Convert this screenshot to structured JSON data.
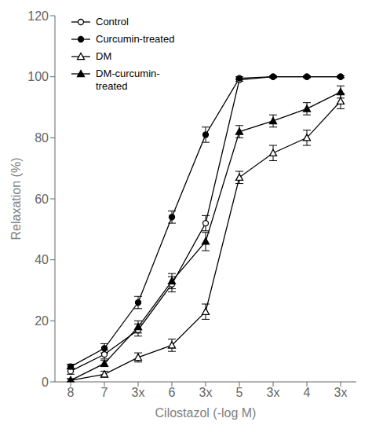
{
  "chart_data": {
    "type": "line",
    "xlabel": "Cilostazol (-log M)",
    "ylabel": "Relaxation (%)",
    "categories": [
      "8",
      "7",
      "3x",
      "6",
      "3x",
      "5",
      "3x",
      "4",
      "3x"
    ],
    "ylim": [
      0,
      120
    ],
    "yticks": [
      0,
      20,
      40,
      60,
      80,
      100,
      120
    ],
    "grid": false,
    "legend": "upper left",
    "series": [
      {
        "name": "Control",
        "color": "black",
        "marker": "circle_open",
        "values": [
          3.5,
          9.0,
          17.0,
          32.0,
          52.0,
          99.0,
          100.0,
          100.0,
          100.0
        ],
        "yerr": [
          1.0,
          1.5,
          2.0,
          2.5,
          2.5,
          0.5,
          0.3,
          0.3,
          0.3
        ]
      },
      {
        "name": "Curcumin-treated",
        "color": "black",
        "marker": "circle_filled",
        "values": [
          5.0,
          11.0,
          26.0,
          54.0,
          81.0,
          99.5,
          100.0,
          100.0,
          100.0
        ],
        "yerr": [
          0.8,
          1.5,
          2.0,
          2.0,
          2.5,
          0.5,
          0.3,
          0.3,
          0.3
        ]
      },
      {
        "name": "DM",
        "color": "black",
        "marker": "triangle_open",
        "values": [
          0.5,
          2.5,
          8.0,
          12.0,
          23.0,
          67.0,
          75.0,
          80.0,
          92.0
        ],
        "yerr": [
          0.5,
          1.0,
          1.5,
          2.0,
          2.5,
          2.0,
          2.5,
          2.5,
          2.5
        ]
      },
      {
        "name": "DM-curcumin-\ntreated",
        "color": "black",
        "marker": "triangle_filled",
        "values": [
          0.5,
          6.0,
          18.0,
          33.0,
          46.0,
          82.0,
          85.5,
          89.5,
          95.0
        ],
        "yerr": [
          0.5,
          1.0,
          2.0,
          2.5,
          3.0,
          2.0,
          2.0,
          2.0,
          2.0
        ]
      }
    ]
  }
}
